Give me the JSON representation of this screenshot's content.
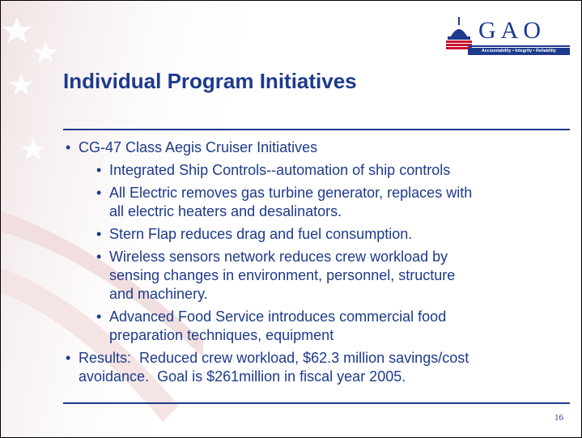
{
  "logo": {
    "name": "GAO",
    "tagline": "Accountability • Integrity • Reliability"
  },
  "header": {
    "title": "Individual Program Initiatives"
  },
  "bullets": [
    {
      "lines": [
        "CG-47 Class Aegis Cruiser Initiatives"
      ],
      "sub": [
        {
          "lines": [
            "Integrated Ship Controls--automation of ship controls"
          ]
        },
        {
          "lines": [
            "All Electric removes gas turbine generator, replaces with",
            "all electric heaters and desalinators."
          ]
        },
        {
          "lines": [
            "Stern Flap reduces drag and fuel consumption."
          ]
        },
        {
          "lines": [
            "Wireless sensors network reduces crew workload by",
            "sensing changes in environment, personnel, structure",
            "and machinery."
          ]
        },
        {
          "lines": [
            "Advanced Food Service introduces commercial food",
            "preparation techniques, equipment"
          ]
        }
      ]
    },
    {
      "lines": [
        "Results:  Reduced crew workload, $62.3 million savings/cost",
        "avoidance.  Goal is $261million in fiscal year 2005."
      ]
    }
  ],
  "footer": {
    "page": "16"
  }
}
